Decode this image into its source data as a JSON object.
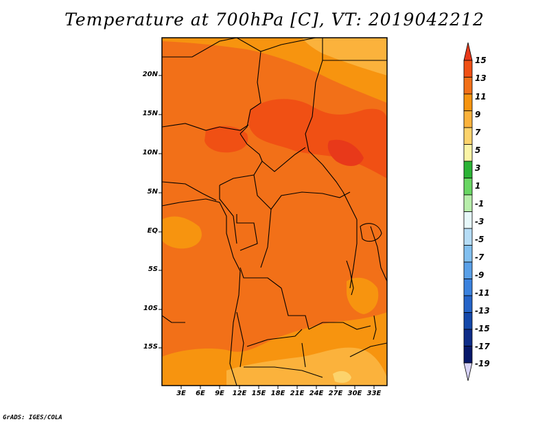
{
  "title": "Temperature at 700hPa [C], VT: 2019042212",
  "credit": "GrADS: IGES/COLA",
  "map": {
    "lat_labels": [
      "20N",
      "15N",
      "10N",
      "5N",
      "EQ",
      "5S",
      "10S",
      "15S"
    ],
    "lon_labels": [
      "3E",
      "6E",
      "9E",
      "12E",
      "15E",
      "18E",
      "21E",
      "24E",
      "27E",
      "30E",
      "33E"
    ]
  },
  "colorbar": {
    "labels": [
      "15",
      "13",
      "11",
      "9",
      "7",
      "5",
      "3",
      "1",
      "-1",
      "-3",
      "-5",
      "-7",
      "-9",
      "-11",
      "-13",
      "-15",
      "-17",
      "-19"
    ],
    "colors": [
      "#e8391a",
      "#f05014",
      "#f27018",
      "#f7940f",
      "#fbb23c",
      "#fcd36c",
      "#fbf4a6",
      "#2bb335",
      "#69d663",
      "#b8eeab",
      "#e7f8fa",
      "#b6ddf6",
      "#82c0f0",
      "#5aa0e8",
      "#3b82de",
      "#2564c8",
      "#1448aa",
      "#0e2c88",
      "#07186a",
      "#d8d4f8"
    ]
  }
}
